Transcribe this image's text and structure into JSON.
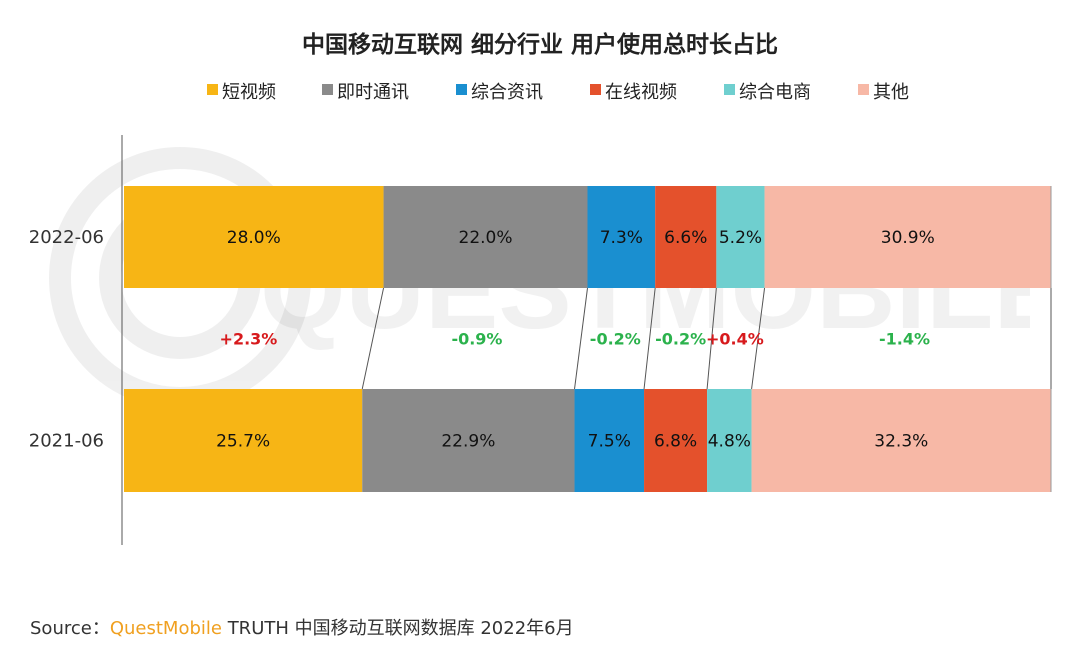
{
  "chart_data": {
    "type": "bar",
    "orientation": "horizontal-stacked-100",
    "title": "中国移动互联网 细分行业 用户使用总时长占比",
    "categories": [
      "2022-06",
      "2021-06"
    ],
    "series": [
      {
        "name": "短视频",
        "color": "#f7b515",
        "values": [
          28.0,
          25.7
        ],
        "delta": "+2.3%",
        "delta_color": "#d7191c"
      },
      {
        "name": "即时通讯",
        "color": "#8a8a8a",
        "values": [
          22.0,
          22.9
        ],
        "delta": "-0.9%",
        "delta_color": "#2bb24c"
      },
      {
        "name": "综合资讯",
        "color": "#1a8fd0",
        "values": [
          7.3,
          7.5
        ],
        "delta": "-0.2%",
        "delta_color": "#2bb24c"
      },
      {
        "name": "在线视频",
        "color": "#e4512c",
        "values": [
          6.6,
          6.8
        ],
        "delta": "-0.2%",
        "delta_color": "#2bb24c"
      },
      {
        "name": "综合电商",
        "color": "#6fcfcf",
        "values": [
          5.2,
          4.8
        ],
        "delta": "+0.4%",
        "delta_color": "#d7191c"
      },
      {
        "name": "其他",
        "color": "#f7b8a6",
        "values": [
          30.9,
          32.3
        ],
        "delta": "-1.4%",
        "delta_color": "#2bb24c"
      }
    ],
    "value_labels": [
      [
        "28.0%",
        "22.0%",
        "7.3%",
        "6.6%",
        "5.2%",
        "30.9%"
      ],
      [
        "25.7%",
        "22.9%",
        "7.5%",
        "6.8%",
        "4.8%",
        "32.3%"
      ]
    ],
    "legend_position": "top",
    "grid": false
  },
  "footer": {
    "source_prefix": "Source：",
    "brand": "QuestMobile",
    "rest": " TRUTH 中国移动互联网数据库 2022年6月"
  },
  "watermark": "QUESTMOBILE"
}
